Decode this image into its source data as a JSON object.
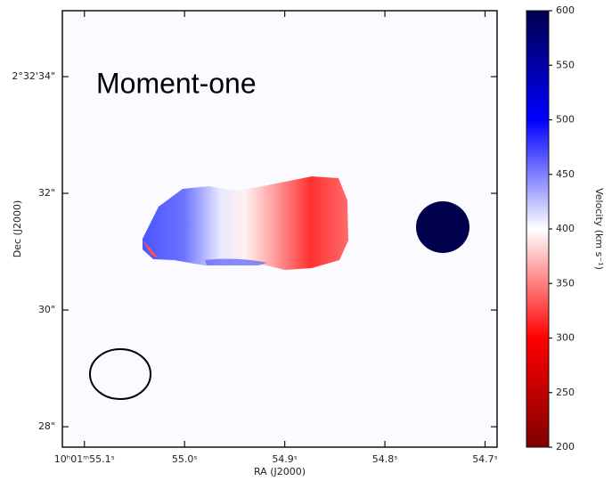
{
  "chart_data": {
    "type": "image",
    "annotation": "Moment-one",
    "xlabel": "RA (J2000)",
    "ylabel": "Dec (J2000)",
    "xlim": [
      55.122,
      54.688
    ],
    "xticks": [
      {
        "value": 55.1,
        "label": "10ʰ01ᵐ55.1ˢ"
      },
      {
        "value": 55.0,
        "label": "55.0ˢ"
      },
      {
        "value": 54.9,
        "label": "54.9ˢ"
      },
      {
        "value": 54.8,
        "label": "54.8ˢ"
      },
      {
        "value": 54.7,
        "label": "54.7ˢ"
      }
    ],
    "ylim": [
      27.65,
      35.13
    ],
    "yticks": [
      {
        "value": 34,
        "label": "2°32'34\""
      },
      {
        "value": 32,
        "label": "32\""
      },
      {
        "value": 30,
        "label": "30\""
      },
      {
        "value": 28,
        "label": "28\""
      }
    ],
    "colorbar": {
      "label": "Velocity (km s⁻¹)",
      "lim": [
        200,
        600
      ],
      "ticks": [
        200,
        250,
        300,
        350,
        400,
        450,
        500,
        550,
        600
      ],
      "colormap": [
        "#7f0000",
        "#ff0000",
        "#ffffff",
        "#0000ff",
        "#00004d"
      ]
    }
  }
}
